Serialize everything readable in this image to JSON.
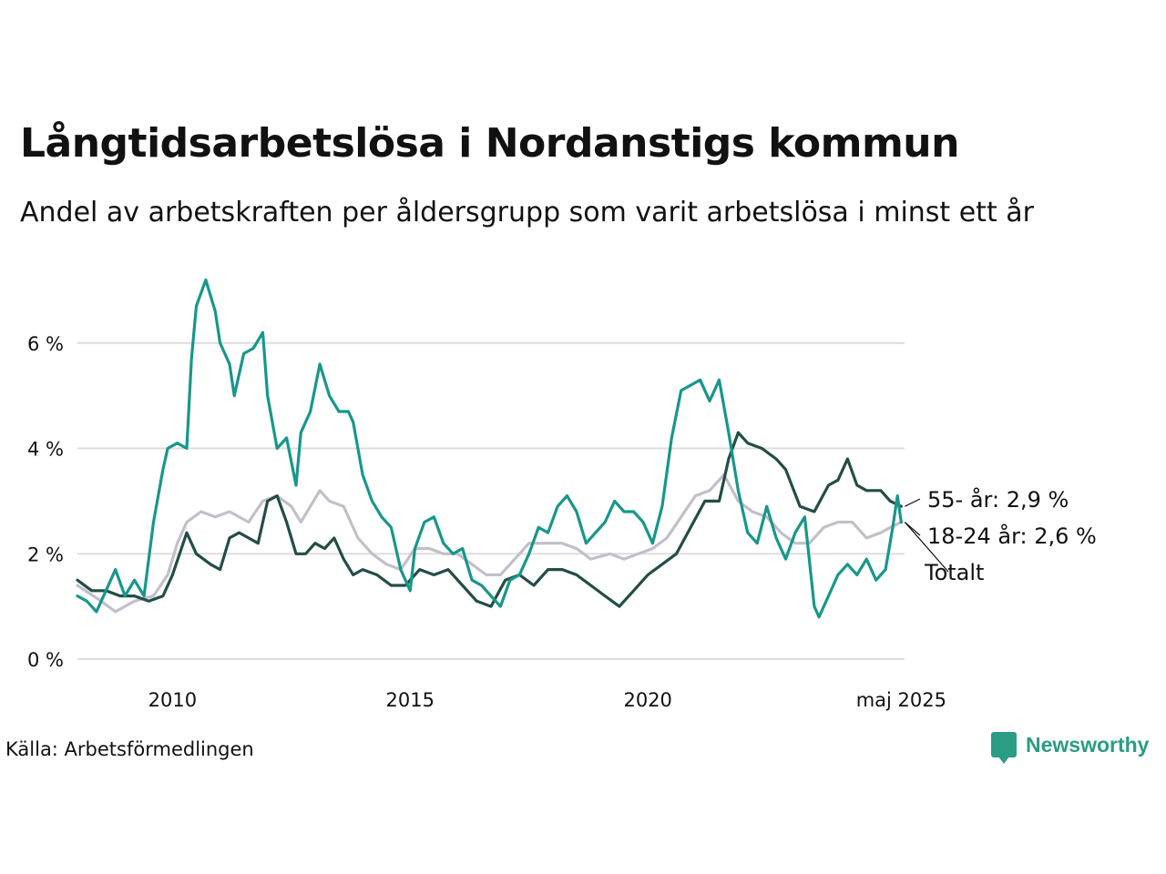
{
  "title": "Långtidsarbetslösa i Nordanstigs kommun",
  "subtitle": "Andel av arbetskraften per åldersgrupp som varit arbetslösa i minst ett år",
  "source": "Källa: Arbetsförmedlingen",
  "brand": "Newsworthy",
  "colors": {
    "ungdom": "#17978a",
    "aldre": "#234d47",
    "totalt": "#c3bfca",
    "grid": "#dddddd"
  },
  "chart_data": {
    "type": "line",
    "ylim": [
      0,
      7.5
    ],
    "xlim": [
      2008.0,
      2025.4
    ],
    "y_ticks": [
      {
        "v": 0,
        "label": "0 %"
      },
      {
        "v": 2,
        "label": "2 %"
      },
      {
        "v": 4,
        "label": "4 %"
      },
      {
        "v": 6,
        "label": "6 %"
      }
    ],
    "x_ticks": [
      {
        "v": 2010,
        "label": "2010"
      },
      {
        "v": 2015,
        "label": "2015"
      },
      {
        "v": 2020,
        "label": "2020"
      },
      {
        "v": 2025.33,
        "label": "maj 2025"
      }
    ],
    "series": [
      {
        "key": "totalt",
        "name": "Totalt",
        "end_label": "Totalt",
        "points": [
          [
            2008.0,
            1.4
          ],
          [
            2008.5,
            1.1
          ],
          [
            2008.8,
            0.9
          ],
          [
            2009.2,
            1.1
          ],
          [
            2009.6,
            1.2
          ],
          [
            2009.9,
            1.6
          ],
          [
            2010.1,
            2.2
          ],
          [
            2010.3,
            2.6
          ],
          [
            2010.6,
            2.8
          ],
          [
            2010.9,
            2.7
          ],
          [
            2011.2,
            2.8
          ],
          [
            2011.6,
            2.6
          ],
          [
            2011.9,
            3.0
          ],
          [
            2012.2,
            3.1
          ],
          [
            2012.5,
            2.9
          ],
          [
            2012.7,
            2.6
          ],
          [
            2012.9,
            2.9
          ],
          [
            2013.1,
            3.2
          ],
          [
            2013.3,
            3.0
          ],
          [
            2013.6,
            2.9
          ],
          [
            2013.9,
            2.3
          ],
          [
            2014.2,
            2.0
          ],
          [
            2014.5,
            1.8
          ],
          [
            2014.8,
            1.7
          ],
          [
            2015.1,
            2.1
          ],
          [
            2015.4,
            2.1
          ],
          [
            2015.7,
            2.0
          ],
          [
            2016.0,
            2.0
          ],
          [
            2016.3,
            1.8
          ],
          [
            2016.6,
            1.6
          ],
          [
            2016.9,
            1.6
          ],
          [
            2017.2,
            1.9
          ],
          [
            2017.5,
            2.2
          ],
          [
            2017.8,
            2.2
          ],
          [
            2018.2,
            2.2
          ],
          [
            2018.5,
            2.1
          ],
          [
            2018.8,
            1.9
          ],
          [
            2019.2,
            2.0
          ],
          [
            2019.5,
            1.9
          ],
          [
            2019.8,
            2.0
          ],
          [
            2020.1,
            2.1
          ],
          [
            2020.4,
            2.3
          ],
          [
            2020.7,
            2.7
          ],
          [
            2021.0,
            3.1
          ],
          [
            2021.3,
            3.2
          ],
          [
            2021.6,
            3.5
          ],
          [
            2021.9,
            3.0
          ],
          [
            2022.2,
            2.8
          ],
          [
            2022.5,
            2.7
          ],
          [
            2022.8,
            2.4
          ],
          [
            2023.1,
            2.2
          ],
          [
            2023.4,
            2.2
          ],
          [
            2023.7,
            2.5
          ],
          [
            2024.0,
            2.6
          ],
          [
            2024.3,
            2.6
          ],
          [
            2024.6,
            2.3
          ],
          [
            2024.9,
            2.4
          ],
          [
            2025.1,
            2.5
          ],
          [
            2025.33,
            2.6
          ]
        ]
      },
      {
        "key": "aldre",
        "name": "55- år",
        "end_label": "55- år: 2,9 %",
        "points": [
          [
            2008.0,
            1.5
          ],
          [
            2008.3,
            1.3
          ],
          [
            2008.6,
            1.3
          ],
          [
            2008.9,
            1.2
          ],
          [
            2009.2,
            1.2
          ],
          [
            2009.5,
            1.1
          ],
          [
            2009.8,
            1.2
          ],
          [
            2010.0,
            1.6
          ],
          [
            2010.3,
            2.4
          ],
          [
            2010.5,
            2.0
          ],
          [
            2010.8,
            1.8
          ],
          [
            2011.0,
            1.7
          ],
          [
            2011.2,
            2.3
          ],
          [
            2011.4,
            2.4
          ],
          [
            2011.6,
            2.3
          ],
          [
            2011.8,
            2.2
          ],
          [
            2012.0,
            3.0
          ],
          [
            2012.2,
            3.1
          ],
          [
            2012.4,
            2.6
          ],
          [
            2012.6,
            2.0
          ],
          [
            2012.8,
            2.0
          ],
          [
            2013.0,
            2.2
          ],
          [
            2013.2,
            2.1
          ],
          [
            2013.4,
            2.3
          ],
          [
            2013.6,
            1.9
          ],
          [
            2013.8,
            1.6
          ],
          [
            2014.0,
            1.7
          ],
          [
            2014.3,
            1.6
          ],
          [
            2014.6,
            1.4
          ],
          [
            2014.9,
            1.4
          ],
          [
            2015.2,
            1.7
          ],
          [
            2015.5,
            1.6
          ],
          [
            2015.8,
            1.7
          ],
          [
            2016.1,
            1.4
          ],
          [
            2016.4,
            1.1
          ],
          [
            2016.7,
            1.0
          ],
          [
            2017.0,
            1.5
          ],
          [
            2017.3,
            1.6
          ],
          [
            2017.6,
            1.4
          ],
          [
            2017.9,
            1.7
          ],
          [
            2018.2,
            1.7
          ],
          [
            2018.5,
            1.6
          ],
          [
            2018.8,
            1.4
          ],
          [
            2019.1,
            1.2
          ],
          [
            2019.4,
            1.0
          ],
          [
            2019.7,
            1.3
          ],
          [
            2020.0,
            1.6
          ],
          [
            2020.3,
            1.8
          ],
          [
            2020.6,
            2.0
          ],
          [
            2020.9,
            2.5
          ],
          [
            2021.2,
            3.0
          ],
          [
            2021.5,
            3.0
          ],
          [
            2021.7,
            3.8
          ],
          [
            2021.9,
            4.3
          ],
          [
            2022.1,
            4.1
          ],
          [
            2022.4,
            4.0
          ],
          [
            2022.7,
            3.8
          ],
          [
            2022.9,
            3.6
          ],
          [
            2023.2,
            2.9
          ],
          [
            2023.5,
            2.8
          ],
          [
            2023.8,
            3.3
          ],
          [
            2024.0,
            3.4
          ],
          [
            2024.2,
            3.8
          ],
          [
            2024.4,
            3.3
          ],
          [
            2024.6,
            3.2
          ],
          [
            2024.9,
            3.2
          ],
          [
            2025.1,
            3.0
          ],
          [
            2025.33,
            2.9
          ]
        ]
      },
      {
        "key": "ungdom",
        "name": "18-24 år",
        "end_label": "18-24 år: 2,6 %",
        "points": [
          [
            2008.0,
            1.2
          ],
          [
            2008.2,
            1.1
          ],
          [
            2008.4,
            0.9
          ],
          [
            2008.6,
            1.3
          ],
          [
            2008.8,
            1.7
          ],
          [
            2009.0,
            1.2
          ],
          [
            2009.2,
            1.5
          ],
          [
            2009.4,
            1.2
          ],
          [
            2009.6,
            2.6
          ],
          [
            2009.8,
            3.6
          ],
          [
            2009.9,
            4.0
          ],
          [
            2010.1,
            4.1
          ],
          [
            2010.3,
            4.0
          ],
          [
            2010.4,
            5.7
          ],
          [
            2010.5,
            6.7
          ],
          [
            2010.7,
            7.2
          ],
          [
            2010.9,
            6.6
          ],
          [
            2011.0,
            6.0
          ],
          [
            2011.2,
            5.6
          ],
          [
            2011.3,
            5.0
          ],
          [
            2011.5,
            5.8
          ],
          [
            2011.7,
            5.9
          ],
          [
            2011.9,
            6.2
          ],
          [
            2012.0,
            5.0
          ],
          [
            2012.2,
            4.0
          ],
          [
            2012.4,
            4.2
          ],
          [
            2012.6,
            3.3
          ],
          [
            2012.7,
            4.3
          ],
          [
            2012.9,
            4.7
          ],
          [
            2013.1,
            5.6
          ],
          [
            2013.3,
            5.0
          ],
          [
            2013.5,
            4.7
          ],
          [
            2013.7,
            4.7
          ],
          [
            2013.8,
            4.5
          ],
          [
            2014.0,
            3.5
          ],
          [
            2014.2,
            3.0
          ],
          [
            2014.4,
            2.7
          ],
          [
            2014.6,
            2.5
          ],
          [
            2014.8,
            1.7
          ],
          [
            2015.0,
            1.3
          ],
          [
            2015.1,
            2.1
          ],
          [
            2015.3,
            2.6
          ],
          [
            2015.5,
            2.7
          ],
          [
            2015.7,
            2.2
          ],
          [
            2015.9,
            2.0
          ],
          [
            2016.1,
            2.1
          ],
          [
            2016.3,
            1.5
          ],
          [
            2016.5,
            1.4
          ],
          [
            2016.7,
            1.2
          ],
          [
            2016.9,
            1.0
          ],
          [
            2017.1,
            1.5
          ],
          [
            2017.3,
            1.6
          ],
          [
            2017.5,
            2.0
          ],
          [
            2017.7,
            2.5
          ],
          [
            2017.9,
            2.4
          ],
          [
            2018.1,
            2.9
          ],
          [
            2018.3,
            3.1
          ],
          [
            2018.5,
            2.8
          ],
          [
            2018.7,
            2.2
          ],
          [
            2018.9,
            2.4
          ],
          [
            2019.1,
            2.6
          ],
          [
            2019.3,
            3.0
          ],
          [
            2019.5,
            2.8
          ],
          [
            2019.7,
            2.8
          ],
          [
            2019.9,
            2.6
          ],
          [
            2020.1,
            2.2
          ],
          [
            2020.3,
            2.9
          ],
          [
            2020.5,
            4.2
          ],
          [
            2020.7,
            5.1
          ],
          [
            2020.9,
            5.2
          ],
          [
            2021.1,
            5.3
          ],
          [
            2021.3,
            4.9
          ],
          [
            2021.5,
            5.3
          ],
          [
            2021.7,
            4.3
          ],
          [
            2021.9,
            3.2
          ],
          [
            2022.1,
            2.4
          ],
          [
            2022.3,
            2.2
          ],
          [
            2022.5,
            2.9
          ],
          [
            2022.7,
            2.3
          ],
          [
            2022.9,
            1.9
          ],
          [
            2023.1,
            2.4
          ],
          [
            2023.3,
            2.7
          ],
          [
            2023.5,
            1.0
          ],
          [
            2023.6,
            0.8
          ],
          [
            2023.8,
            1.2
          ],
          [
            2024.0,
            1.6
          ],
          [
            2024.2,
            1.8
          ],
          [
            2024.4,
            1.6
          ],
          [
            2024.6,
            1.9
          ],
          [
            2024.8,
            1.5
          ],
          [
            2025.0,
            1.7
          ],
          [
            2025.15,
            2.5
          ],
          [
            2025.25,
            3.1
          ],
          [
            2025.33,
            2.6
          ]
        ]
      }
    ]
  }
}
